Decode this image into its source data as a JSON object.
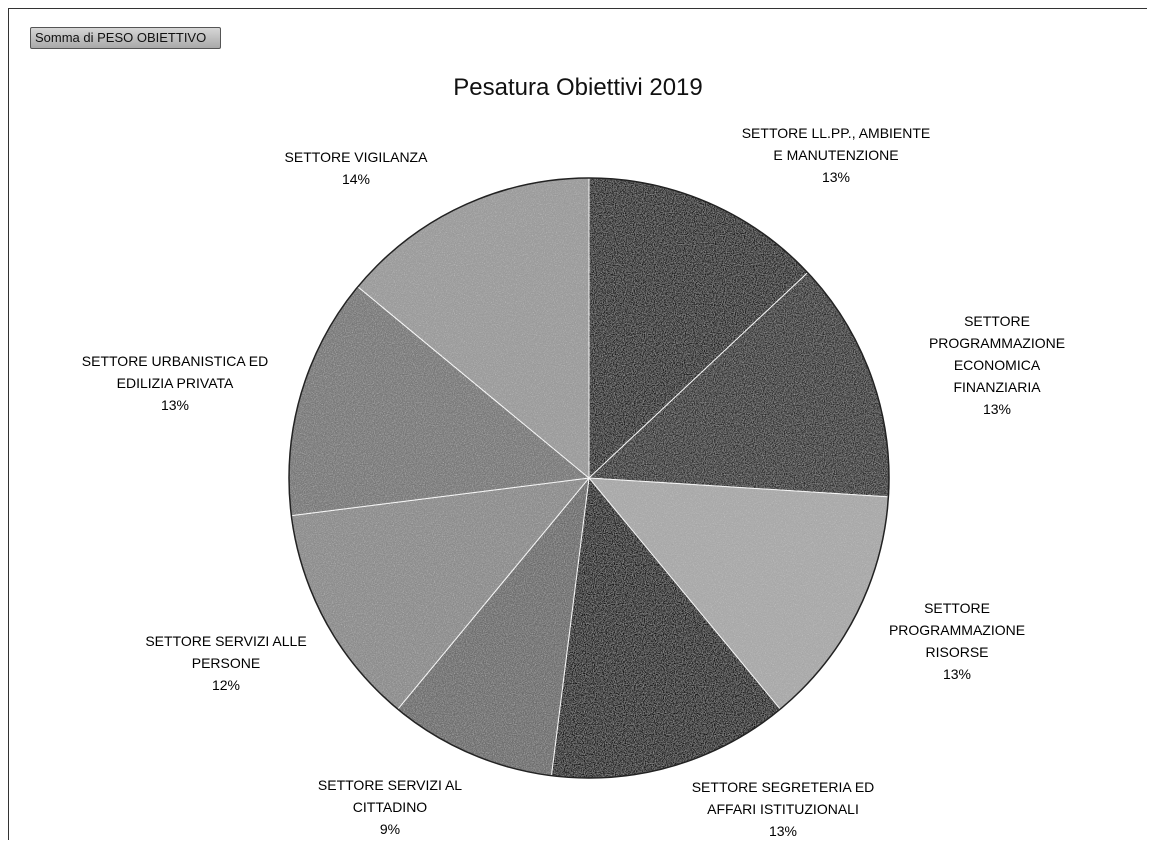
{
  "field_button": "Somma di PESO OBIETTIVO",
  "chart_data": {
    "type": "pie",
    "title": "Pesatura Obiettivi 2019",
    "slices": [
      {
        "label": "SETTORE LL.PP., AMBIENTE E MANUTENZIONE",
        "label_lines": "SETTORE LL.PP., AMBIENTE\nE MANUTENZIONE",
        "percent": "13%",
        "value": 13,
        "color": "#1e1e1e"
      },
      {
        "label": "SETTORE PROGRAMMAZIONE ECONOMICA FINANZIARIA",
        "label_lines": "SETTORE\nPROGRAMMAZIONE\nECONOMICA FINANZIARIA",
        "percent": "13%",
        "value": 13,
        "color": "#2c2c2c"
      },
      {
        "label": "SETTORE PROGRAMMAZIONE RISORSE",
        "label_lines": "SETTORE\nPROGRAMMAZIONE\nRISORSE",
        "percent": "13%",
        "value": 13,
        "color": "#a9a9a9"
      },
      {
        "label": "SETTORE SEGRETERIA ED AFFARI ISTITUZIONALI",
        "label_lines": "SETTORE SEGRETERIA ED\nAFFARI ISTITUZIONALI",
        "percent": "13%",
        "value": 13,
        "color": "#141414"
      },
      {
        "label": "SETTORE SERVIZI AL CITTADINO",
        "label_lines": "SETTORE SERVIZI AL\nCITTADINO",
        "percent": "9%",
        "value": 9,
        "color": "#6a6a6a"
      },
      {
        "label": "SETTORE SERVIZI ALLE PERSONE",
        "label_lines": "SETTORE SERVIZI ALLE\nPERSONE",
        "percent": "12%",
        "value": 12,
        "color": "#8a8a8a"
      },
      {
        "label": "SETTORE URBANISTICA ED EDILIZIA PRIVATA",
        "label_lines": "SETTORE URBANISTICA ED\nEDILIZIA PRIVATA",
        "percent": "13%",
        "value": 13,
        "color": "#767676"
      },
      {
        "label": "SETTORE VIGILANZA",
        "label_lines": "SETTORE VIGILANZA",
        "percent": "14%",
        "value": 14,
        "color": "#9a9a9a"
      }
    ]
  }
}
